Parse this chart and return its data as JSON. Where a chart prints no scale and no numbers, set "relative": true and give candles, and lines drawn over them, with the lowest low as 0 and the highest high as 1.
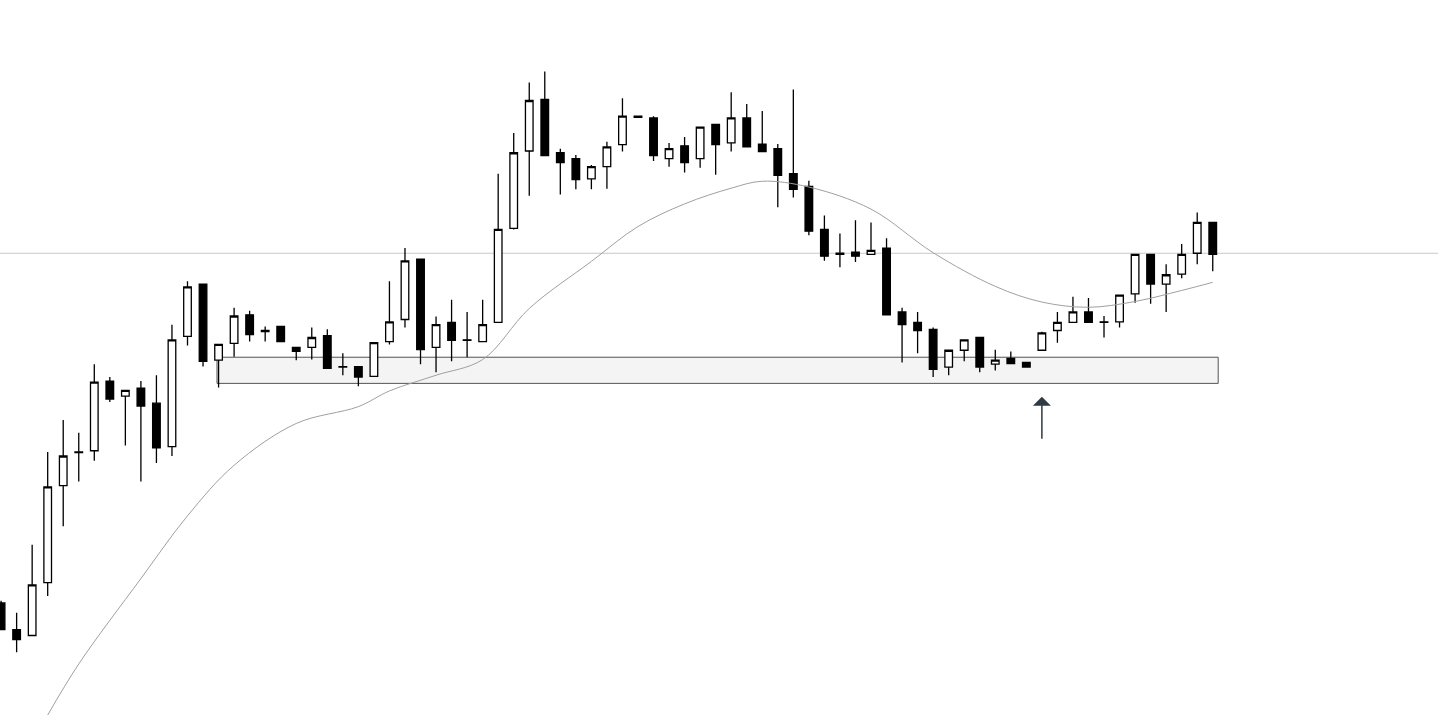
{
  "chart_data": {
    "type": "candlestick",
    "relative": true,
    "categories": [
      null,
      null,
      null,
      null,
      null,
      null,
      null,
      null,
      null,
      null,
      null,
      null,
      null,
      null,
      null,
      null,
      null,
      null,
      null,
      null,
      null,
      null,
      null,
      null,
      null,
      null,
      null,
      null,
      null,
      null,
      null,
      null,
      null,
      null,
      null,
      null,
      null,
      null,
      null,
      null,
      null,
      null,
      null,
      null,
      null,
      null,
      null,
      null,
      null,
      null,
      null,
      null,
      null,
      null,
      null,
      null,
      null,
      null,
      null,
      null,
      null,
      null,
      null,
      null,
      null,
      null,
      null,
      null,
      null,
      null,
      null,
      null,
      null,
      null,
      null,
      null,
      null,
      null,
      null
    ],
    "ohlc": [
      [
        0.085,
        0.089,
        0.039,
        0.039
      ],
      [
        0.039,
        0.068,
        0,
        0.022
      ],
      [
        0.029,
        0.185,
        0.029,
        0.116
      ],
      [
        0.12,
        0.345,
        0.097,
        0.285
      ],
      [
        0.287,
        0.4,
        0.217,
        0.338
      ],
      [
        0.344,
        0.378,
        0.294,
        0.345
      ],
      [
        0.347,
        0.496,
        0.33,
        0.465
      ],
      [
        0.467,
        0.474,
        0.431,
        0.436
      ],
      [
        0.441,
        0.451,
        0.356,
        0.451
      ],
      [
        0.455,
        0.467,
        0.294,
        0.424
      ],
      [
        0.429,
        0.477,
        0.326,
        0.352
      ],
      [
        0.354,
        0.564,
        0.338,
        0.538
      ],
      [
        0.544,
        0.639,
        0.528,
        0.629
      ],
      [
        0.634,
        0.634,
        0.492,
        0.501
      ],
      [
        0.503,
        0.53,
        0.456,
        0.53
      ],
      [
        0.532,
        0.593,
        0.509,
        0.579
      ],
      [
        0.581,
        0.588,
        0.535,
        0.547
      ],
      [
        0.554,
        0.561,
        0.535,
        0.552
      ],
      [
        0.561,
        0.561,
        0.535,
        0.535
      ],
      [
        0.525,
        0.525,
        0.503,
        0.518
      ],
      [
        0.525,
        0.559,
        0.504,
        0.542
      ],
      [
        0.545,
        0.556,
        0.489,
        0.489
      ],
      [
        0.492,
        0.515,
        0.477,
        0.491
      ],
      [
        0.492,
        0.492,
        0.458,
        0.474
      ],
      [
        0.475,
        0.533,
        0.475,
        0.533
      ],
      [
        0.535,
        0.639,
        0.53,
        0.569
      ],
      [
        0.573,
        0.696,
        0.559,
        0.674
      ],
      [
        0.677,
        0.677,
        0.496,
        0.521
      ],
      [
        0.525,
        0.578,
        0.482,
        0.564
      ],
      [
        0.568,
        0.607,
        0.501,
        0.537
      ],
      [
        0.538,
        0.586,
        0.508,
        0.537
      ],
      [
        0.535,
        0.607,
        0.535,
        0.564
      ],
      [
        0.568,
        0.824,
        0.568,
        0.728
      ],
      [
        0.73,
        0.894,
        0.728,
        0.86
      ],
      [
        0.863,
        0.981,
        0.786,
        0.95
      ],
      [
        0.952,
        1,
        0.855,
        0.855
      ],
      [
        0.86,
        0.867,
        0.788,
        0.843
      ],
      [
        0.85,
        0.856,
        0.797,
        0.814
      ],
      [
        0.815,
        0.839,
        0.797,
        0.836
      ],
      [
        0.836,
        0.879,
        0.798,
        0.87
      ],
      [
        0.874,
        0.954,
        0.862,
        0.923
      ],
      [
        0.923,
        0.923,
        0.921,
        0.921
      ],
      [
        0.92,
        0.923,
        0.846,
        0.855
      ],
      [
        0.85,
        0.877,
        0.836,
        0.867
      ],
      [
        0.872,
        0.887,
        0.826,
        0.843
      ],
      [
        0.85,
        0.904,
        0.834,
        0.904
      ],
      [
        0.909,
        0.909,
        0.822,
        0.874
      ],
      [
        0.877,
        0.964,
        0.862,
        0.92
      ],
      [
        0.92,
        0.944,
        0.87,
        0.87
      ],
      [
        0.875,
        0.932,
        0.862,
        0.862
      ],
      [
        0.867,
        0.875,
        0.766,
        0.821
      ],
      [
        0.824,
        0.969,
        0.783,
        0.797
      ],
      [
        0.802,
        0.812,
        0.718,
        0.725
      ],
      [
        0.728,
        0.752,
        0.674,
        0.682
      ],
      [
        0.687,
        0.721,
        0.663,
        0.685
      ],
      [
        0.689,
        0.744,
        0.672,
        0.682
      ],
      [
        0.685,
        0.74,
        0.685,
        0.692
      ],
      [
        0.696,
        0.713,
        0.581,
        0.581
      ],
      [
        0.586,
        0.593,
        0.499,
        0.564
      ],
      [
        0.568,
        0.586,
        0.515,
        0.554
      ],
      [
        0.556,
        0.559,
        0.474,
        0.487
      ],
      [
        0.491,
        0.52,
        0.477,
        0.52
      ],
      [
        0.52,
        0.538,
        0.501,
        0.538
      ],
      [
        0.542,
        0.542,
        0.482,
        0.491
      ],
      [
        0.496,
        0.521,
        0.485,
        0.503
      ],
      [
        0.506,
        0.518,
        0.497,
        0.497
      ],
      [
        0.499,
        0.499,
        0.491,
        0.491
      ],
      [
        0.52,
        0.552,
        0.52,
        0.55
      ],
      [
        0.554,
        0.586,
        0.533,
        0.568
      ],
      [
        0.568,
        0.612,
        0.568,
        0.586
      ],
      [
        0.586,
        0.61,
        0.568,
        0.568
      ],
      [
        0.569,
        0.579,
        0.542,
        0.568
      ],
      [
        0.569,
        0.615,
        0.559,
        0.615
      ],
      [
        0.617,
        0.685,
        0.602,
        0.685
      ],
      [
        0.685,
        0.685,
        0.6,
        0.634
      ],
      [
        0.634,
        0.668,
        0.586,
        0.65
      ],
      [
        0.651,
        0.703,
        0.644,
        0.685
      ],
      [
        0.687,
        0.757,
        0.668,
        0.74
      ],
      [
        0.74,
        0.74,
        0.656,
        0.685
      ]
    ],
    "series": [
      {
        "type": "line",
        "color": "#a0a0a0",
        "values": [
          null,
          null,
          null,
          -0.108,
          null,
          -0.02,
          null,
          null,
          null,
          0.127,
          null,
          null,
          0.235,
          null,
          null,
          0.322,
          null,
          null,
          null,
          0.394,
          null,
          null,
          null,
          0.423,
          null,
          0.45,
          null,
          null,
          0.477,
          null,
          null,
          0.504,
          null,
          null,
          0.592,
          null,
          null,
          null,
          0.673,
          null,
          null,
          0.733,
          null,
          null,
          0.772,
          null,
          null,
          0.799,
          null,
          0.811,
          null,
          null,
          0.801,
          null,
          null,
          null,
          0.763,
          null,
          null,
          null,
          0.688,
          null,
          null,
          null,
          0.63,
          null,
          null,
          0.603,
          null,
          null,
          0.594,
          null,
          null,
          0.604,
          null,
          null,
          0.623,
          null,
          0.637
        ]
      }
    ],
    "ref_lines": [
      {
        "axis": "y",
        "value": 0.687,
        "color": "#c8c8c8"
      }
    ],
    "bands": [
      {
        "axis": "y",
        "from": 0.463,
        "to": 0.508,
        "color": "#555555"
      }
    ]
  }
}
